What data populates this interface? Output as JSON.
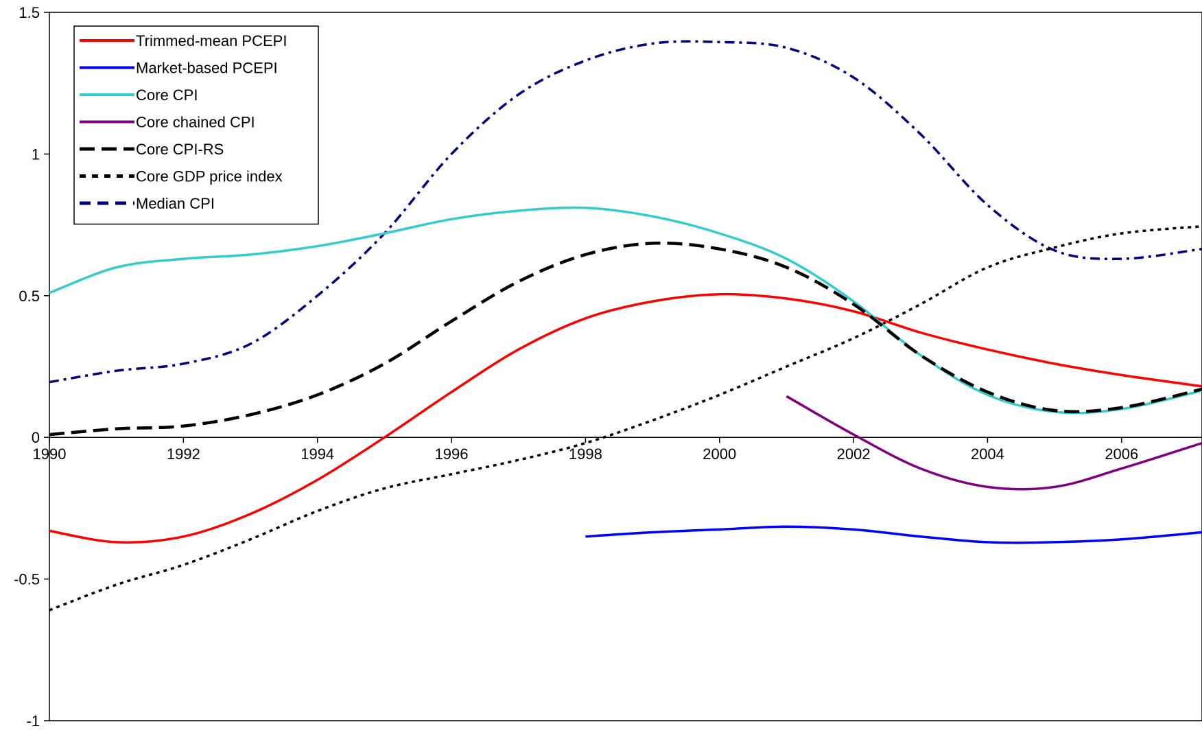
{
  "chart_data": {
    "type": "line",
    "title": "",
    "xlabel": "",
    "ylabel": "",
    "xlim": [
      1990,
      2007.2
    ],
    "ylim": [
      -1,
      1.5
    ],
    "x_ticks": [
      {
        "value": 1990,
        "label": "1990"
      },
      {
        "value": 1992,
        "label": "1992"
      },
      {
        "value": 1994,
        "label": "1994"
      },
      {
        "value": 1996,
        "label": "1996"
      },
      {
        "value": 1998,
        "label": "1998"
      },
      {
        "value": 2000,
        "label": "2000"
      },
      {
        "value": 2002,
        "label": "2002"
      },
      {
        "value": 2004,
        "label": "2004"
      },
      {
        "value": 2006,
        "label": "2006"
      }
    ],
    "y_ticks": [
      {
        "value": 1.5,
        "label": "1.5"
      },
      {
        "value": 1,
        "label": "1"
      },
      {
        "value": 0.5,
        "label": "0.5"
      },
      {
        "value": 0,
        "label": "0"
      },
      {
        "value": -0.5,
        "label": "-0.5"
      },
      {
        "value": -1,
        "label": "-1"
      }
    ],
    "grid": false,
    "legend_position": "top-left",
    "series": [
      {
        "name": "Trimmed-mean PCEPI",
        "color": "#ff0000",
        "style": "solid",
        "points": [
          [
            1990,
            -0.33
          ],
          [
            1991,
            -0.37
          ],
          [
            1992,
            -0.35
          ],
          [
            1993,
            -0.27
          ],
          [
            1994,
            -0.15
          ],
          [
            1995,
            0.0
          ],
          [
            1996,
            0.16
          ],
          [
            1997,
            0.31
          ],
          [
            1998,
            0.42
          ],
          [
            1999,
            0.48
          ],
          [
            2000,
            0.505
          ],
          [
            2001,
            0.49
          ],
          [
            2002,
            0.445
          ],
          [
            2003,
            0.37
          ],
          [
            2004,
            0.31
          ],
          [
            2005,
            0.26
          ],
          [
            2006,
            0.22
          ],
          [
            2007.2,
            0.18
          ]
        ]
      },
      {
        "name": "Market-based PCEPI",
        "color": "#0000ff",
        "style": "solid",
        "points": [
          [
            1998,
            -0.35
          ],
          [
            1999,
            -0.335
          ],
          [
            2000,
            -0.325
          ],
          [
            2001,
            -0.315
          ],
          [
            2002,
            -0.325
          ],
          [
            2003,
            -0.35
          ],
          [
            2004,
            -0.37
          ],
          [
            2005,
            -0.37
          ],
          [
            2006,
            -0.36
          ],
          [
            2007.2,
            -0.335
          ]
        ]
      },
      {
        "name": "Core CPI",
        "color": "#33cccc",
        "style": "solid",
        "points": [
          [
            1990,
            0.51
          ],
          [
            1991,
            0.6
          ],
          [
            1992,
            0.63
          ],
          [
            1993,
            0.645
          ],
          [
            1994,
            0.675
          ],
          [
            1995,
            0.72
          ],
          [
            1996,
            0.77
          ],
          [
            1997,
            0.8
          ],
          [
            1998,
            0.81
          ],
          [
            1999,
            0.78
          ],
          [
            2000,
            0.72
          ],
          [
            2001,
            0.63
          ],
          [
            2002,
            0.48
          ],
          [
            2003,
            0.29
          ],
          [
            2004,
            0.15
          ],
          [
            2005,
            0.09
          ],
          [
            2006,
            0.1
          ],
          [
            2007.2,
            0.165
          ]
        ]
      },
      {
        "name": "Core chained CPI",
        "color": "#800080",
        "style": "solid",
        "points": [
          [
            2001,
            0.145
          ],
          [
            2002,
            0.01
          ],
          [
            2003,
            -0.11
          ],
          [
            2004,
            -0.175
          ],
          [
            2005,
            -0.175
          ],
          [
            2006,
            -0.11
          ],
          [
            2007.2,
            -0.02
          ]
        ]
      },
      {
        "name": "Core CPI-RS",
        "color": "#000000",
        "style": "dash",
        "points": [
          [
            1990,
            0.01
          ],
          [
            1991,
            0.03
          ],
          [
            1992,
            0.04
          ],
          [
            1993,
            0.08
          ],
          [
            1994,
            0.15
          ],
          [
            1995,
            0.26
          ],
          [
            1996,
            0.41
          ],
          [
            1997,
            0.55
          ],
          [
            1998,
            0.645
          ],
          [
            1999,
            0.685
          ],
          [
            2000,
            0.665
          ],
          [
            2001,
            0.6
          ],
          [
            2002,
            0.47
          ],
          [
            2003,
            0.29
          ],
          [
            2004,
            0.16
          ],
          [
            2005,
            0.095
          ],
          [
            2006,
            0.105
          ],
          [
            2007.2,
            0.17
          ]
        ]
      },
      {
        "name": "Core GDP price index",
        "color": "#000000",
        "style": "dot",
        "points": [
          [
            1990,
            -0.61
          ],
          [
            1991,
            -0.52
          ],
          [
            1992,
            -0.45
          ],
          [
            1993,
            -0.36
          ],
          [
            1994,
            -0.26
          ],
          [
            1995,
            -0.18
          ],
          [
            1996,
            -0.13
          ],
          [
            1997,
            -0.08
          ],
          [
            1998,
            -0.02
          ],
          [
            1999,
            0.06
          ],
          [
            2000,
            0.15
          ],
          [
            2001,
            0.25
          ],
          [
            2002,
            0.35
          ],
          [
            2003,
            0.47
          ],
          [
            2004,
            0.6
          ],
          [
            2005,
            0.67
          ],
          [
            2006,
            0.72
          ],
          [
            2007.2,
            0.745
          ]
        ]
      },
      {
        "name": "Median CPI",
        "color": "#000080",
        "style": "dashdot",
        "points": [
          [
            1990,
            0.195
          ],
          [
            1991,
            0.235
          ],
          [
            1992,
            0.26
          ],
          [
            1993,
            0.33
          ],
          [
            1994,
            0.5
          ],
          [
            1995,
            0.72
          ],
          [
            1996,
            1.0
          ],
          [
            1997,
            1.21
          ],
          [
            1998,
            1.33
          ],
          [
            1999,
            1.39
          ],
          [
            2000,
            1.395
          ],
          [
            2001,
            1.375
          ],
          [
            2002,
            1.27
          ],
          [
            2003,
            1.07
          ],
          [
            2004,
            0.82
          ],
          [
            2005,
            0.66
          ],
          [
            2006,
            0.63
          ],
          [
            2007.2,
            0.665
          ]
        ]
      }
    ]
  }
}
